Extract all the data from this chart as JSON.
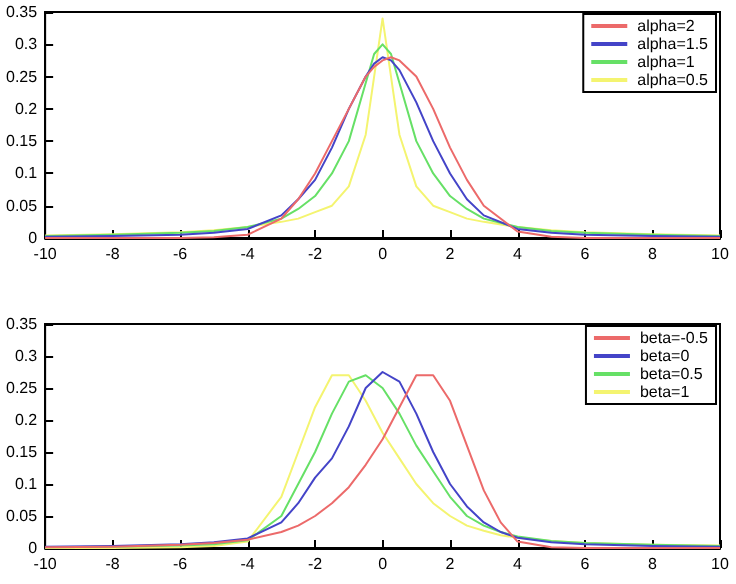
{
  "chart_data": [
    {
      "type": "line",
      "x": [
        -10,
        -8,
        -6,
        -5,
        -4,
        -3,
        -2.5,
        -2,
        -1.5,
        -1,
        -0.5,
        -0.25,
        0,
        0.25,
        0.5,
        1,
        1.5,
        2,
        2.5,
        3,
        4,
        5,
        6,
        8,
        10
      ],
      "legend": "top right",
      "grid": false,
      "marker": "none",
      "line_style": "solid",
      "xlim": [
        -10,
        10
      ],
      "xticks": [
        -10,
        -8,
        -6,
        -4,
        -2,
        0,
        2,
        4,
        6,
        8,
        10
      ],
      "ylim": [
        0,
        0.35
      ],
      "yticks": [
        0,
        0.05,
        0.1,
        0.15,
        0.2,
        0.25,
        0.3,
        0.35
      ],
      "series": [
        {
          "name": "alpha=2",
          "color": "#ec6a6a",
          "values": [
            0,
            0,
            0,
            0.001,
            0.005,
            0.03,
            0.06,
            0.1,
            0.15,
            0.2,
            0.25,
            0.265,
            0.275,
            0.28,
            0.275,
            0.25,
            0.2,
            0.14,
            0.09,
            0.05,
            0.01,
            0.002,
            0,
            0,
            0
          ]
        },
        {
          "name": "alpha=1.5",
          "color": "#4444c8",
          "values": [
            0.002,
            0.003,
            0.005,
            0.008,
            0.014,
            0.035,
            0.06,
            0.09,
            0.14,
            0.2,
            0.25,
            0.27,
            0.28,
            0.275,
            0.26,
            0.21,
            0.15,
            0.1,
            0.06,
            0.035,
            0.014,
            0.008,
            0.005,
            0.003,
            0.002
          ]
        },
        {
          "name": "alpha=1",
          "color": "#66e066",
          "values": [
            0.003,
            0.005,
            0.008,
            0.011,
            0.017,
            0.03,
            0.045,
            0.065,
            0.1,
            0.15,
            0.24,
            0.285,
            0.3,
            0.285,
            0.24,
            0.15,
            0.1,
            0.065,
            0.045,
            0.03,
            0.017,
            0.011,
            0.008,
            0.005,
            0.003
          ]
        },
        {
          "name": "alpha=0.5",
          "color": "#f4f470",
          "values": [
            0.004,
            0.006,
            0.009,
            0.012,
            0.017,
            0.025,
            0.03,
            0.04,
            0.05,
            0.08,
            0.16,
            0.25,
            0.34,
            0.25,
            0.16,
            0.08,
            0.05,
            0.04,
            0.03,
            0.025,
            0.017,
            0.012,
            0.009,
            0.006,
            0.004
          ]
        }
      ]
    },
    {
      "type": "line",
      "x": [
        -10,
        -8,
        -6,
        -5,
        -4,
        -3,
        -2.5,
        -2,
        -1.5,
        -1,
        -0.5,
        0,
        0.5,
        1,
        1.5,
        2,
        2.5,
        3,
        3.5,
        4,
        5,
        6,
        8,
        10
      ],
      "legend": "top right",
      "grid": false,
      "marker": "none",
      "line_style": "solid",
      "xlim": [
        -10,
        10
      ],
      "xticks": [
        -10,
        -8,
        -6,
        -4,
        -2,
        0,
        2,
        4,
        6,
        8,
        10
      ],
      "ylim": [
        0,
        0.35
      ],
      "yticks": [
        0,
        0.05,
        0.1,
        0.15,
        0.2,
        0.25,
        0.3,
        0.35
      ],
      "series": [
        {
          "name": "beta=-0.5",
          "color": "#ec6a6a",
          "values": [
            0.001,
            0.002,
            0.005,
            0.008,
            0.013,
            0.025,
            0.035,
            0.05,
            0.07,
            0.095,
            0.13,
            0.17,
            0.22,
            0.27,
            0.27,
            0.23,
            0.16,
            0.09,
            0.04,
            0.01,
            0.001,
            0,
            0,
            0
          ]
        },
        {
          "name": "beta=0",
          "color": "#4444c8",
          "values": [
            0.002,
            0.003,
            0.006,
            0.009,
            0.015,
            0.04,
            0.07,
            0.11,
            0.14,
            0.19,
            0.25,
            0.275,
            0.26,
            0.21,
            0.15,
            0.1,
            0.065,
            0.04,
            0.025,
            0.016,
            0.009,
            0.006,
            0.003,
            0.002
          ]
        },
        {
          "name": "beta=0.5",
          "color": "#66e066",
          "values": [
            0.001,
            0.002,
            0.004,
            0.006,
            0.012,
            0.05,
            0.1,
            0.15,
            0.21,
            0.26,
            0.27,
            0.25,
            0.21,
            0.16,
            0.12,
            0.08,
            0.05,
            0.035,
            0.025,
            0.018,
            0.011,
            0.008,
            0.005,
            0.003
          ]
        },
        {
          "name": "beta=1",
          "color": "#f4f470",
          "values": [
            0,
            0,
            0.001,
            0.003,
            0.01,
            0.08,
            0.15,
            0.22,
            0.27,
            0.27,
            0.23,
            0.18,
            0.14,
            0.1,
            0.07,
            0.05,
            0.035,
            0.027,
            0.02,
            0.016,
            0.011,
            0.008,
            0.005,
            0.004
          ]
        }
      ]
    }
  ]
}
